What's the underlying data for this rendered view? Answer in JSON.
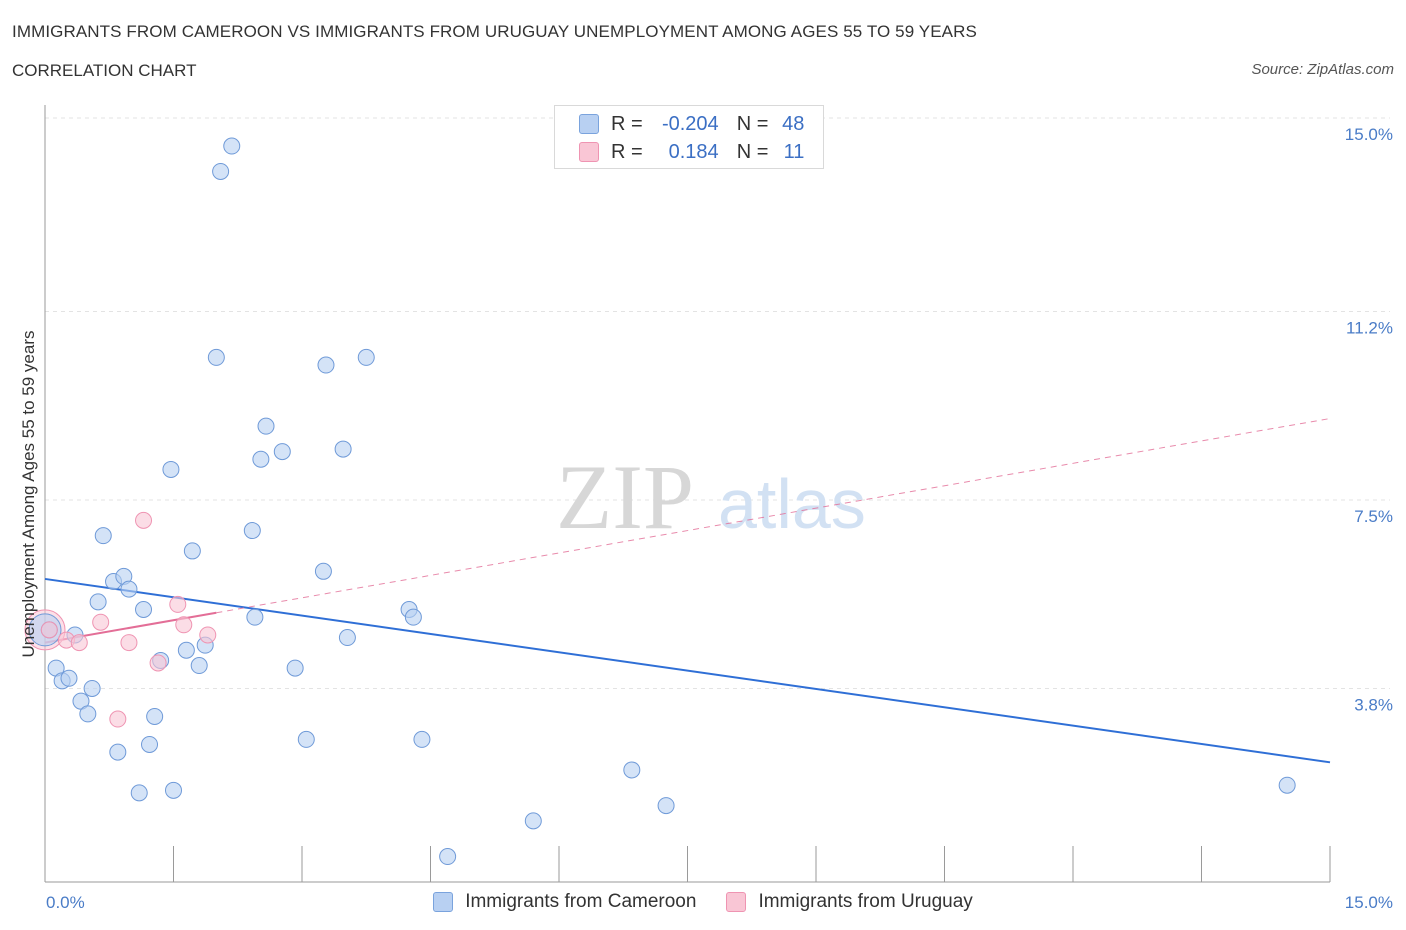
{
  "title": "IMMIGRANTS FROM CAMEROON VS IMMIGRANTS FROM URUGUAY UNEMPLOYMENT AMONG AGES 55 TO 59 YEARS",
  "subtitle": "CORRELATION CHART",
  "source": "Source: ZipAtlas.com",
  "watermark": {
    "zip": "ZIP",
    "atlas": "atlas"
  },
  "legend_top": [
    {
      "r_label": "R =",
      "r_value": "-0.204",
      "n_label": "N =",
      "n_value": "48",
      "color": "#b8d0f2",
      "border": "#7aa3dd"
    },
    {
      "r_label": "R =",
      "r_value": "0.184",
      "n_label": "N =",
      "n_value": "11",
      "color": "#f9c6d5",
      "border": "#ef94b2"
    }
  ],
  "chart_data": {
    "type": "scatter",
    "title": "IMMIGRANTS FROM CAMEROON VS IMMIGRANTS FROM URUGUAY UNEMPLOYMENT AMONG AGES 55 TO 59 YEARS",
    "xlabel": "",
    "ylabel": "Unemployment Among Ages 55 to 59 years",
    "xlim": [
      0,
      15
    ],
    "ylim": [
      0,
      15
    ],
    "x_tick_labels": [
      "0.0%",
      "15.0%"
    ],
    "y_ticks": [
      {
        "value": 3.8,
        "label": "3.8%"
      },
      {
        "value": 7.5,
        "label": "7.5%"
      },
      {
        "value": 11.2,
        "label": "11.2%"
      },
      {
        "value": 15.0,
        "label": "15.0%"
      }
    ],
    "series": [
      {
        "name": "Immigrants from Cameroon",
        "color": "#b8d0f2",
        "stroke": "#6f9ad8",
        "trend_color": "#2f6fd6",
        "trend": {
          "x0": 0.0,
          "y0": 5.95,
          "x1": 15.0,
          "y1": 2.35
        },
        "points": [
          [
            0.05,
            4.95
          ],
          [
            0.13,
            4.2
          ],
          [
            0.2,
            3.95
          ],
          [
            0.28,
            4.0
          ],
          [
            0.35,
            4.85
          ],
          [
            0.42,
            3.55
          ],
          [
            0.5,
            3.3
          ],
          [
            0.55,
            3.8
          ],
          [
            0.62,
            5.5
          ],
          [
            0.68,
            6.8
          ],
          [
            0.8,
            5.9
          ],
          [
            0.85,
            2.55
          ],
          [
            0.92,
            6.0
          ],
          [
            0.98,
            5.75
          ],
          [
            1.1,
            1.75
          ],
          [
            1.15,
            5.35
          ],
          [
            1.22,
            2.7
          ],
          [
            1.28,
            3.25
          ],
          [
            1.35,
            4.35
          ],
          [
            1.47,
            8.1
          ],
          [
            1.5,
            1.8
          ],
          [
            1.65,
            4.55
          ],
          [
            1.72,
            6.5
          ],
          [
            1.8,
            4.25
          ],
          [
            1.87,
            4.65
          ],
          [
            2.0,
            10.3
          ],
          [
            2.05,
            13.95
          ],
          [
            2.18,
            14.45
          ],
          [
            2.42,
            6.9
          ],
          [
            2.45,
            5.2
          ],
          [
            2.52,
            8.3
          ],
          [
            2.58,
            8.95
          ],
          [
            2.77,
            8.45
          ],
          [
            2.92,
            4.2
          ],
          [
            3.05,
            2.8
          ],
          [
            3.25,
            6.1
          ],
          [
            3.28,
            10.15
          ],
          [
            3.48,
            8.5
          ],
          [
            3.53,
            4.8
          ],
          [
            3.75,
            10.3
          ],
          [
            4.25,
            5.35
          ],
          [
            4.3,
            5.2
          ],
          [
            4.4,
            2.8
          ],
          [
            4.7,
            0.5
          ],
          [
            5.7,
            1.2
          ],
          [
            6.85,
            2.2
          ],
          [
            7.25,
            1.5
          ],
          [
            14.5,
            1.9
          ]
        ]
      },
      {
        "name": "Immigrants from Uruguay",
        "color": "#f9c6d5",
        "stroke": "#ef94b2",
        "trend_color": "#e36e97",
        "trend": {
          "x0": 0.0,
          "y0": 4.7,
          "x1": 15.0,
          "y1": 9.1
        },
        "trend_solid_until": 2.0,
        "points": [
          [
            0.05,
            4.95
          ],
          [
            0.25,
            4.75
          ],
          [
            0.4,
            4.7
          ],
          [
            0.65,
            5.1
          ],
          [
            0.85,
            3.2
          ],
          [
            0.98,
            4.7
          ],
          [
            1.15,
            7.1
          ],
          [
            1.32,
            4.3
          ],
          [
            1.55,
            5.45
          ],
          [
            1.62,
            5.05
          ],
          [
            1.9,
            4.85
          ]
        ]
      }
    ],
    "big_points": [
      [
        0.0,
        4.95
      ]
    ]
  },
  "legend_bottom": [
    {
      "label": "Immigrants from Cameroon",
      "color": "#b8d0f2",
      "border": "#7aa3dd"
    },
    {
      "label": "Immigrants from Uruguay",
      "color": "#f9c6d5",
      "border": "#ef94b2"
    }
  ]
}
